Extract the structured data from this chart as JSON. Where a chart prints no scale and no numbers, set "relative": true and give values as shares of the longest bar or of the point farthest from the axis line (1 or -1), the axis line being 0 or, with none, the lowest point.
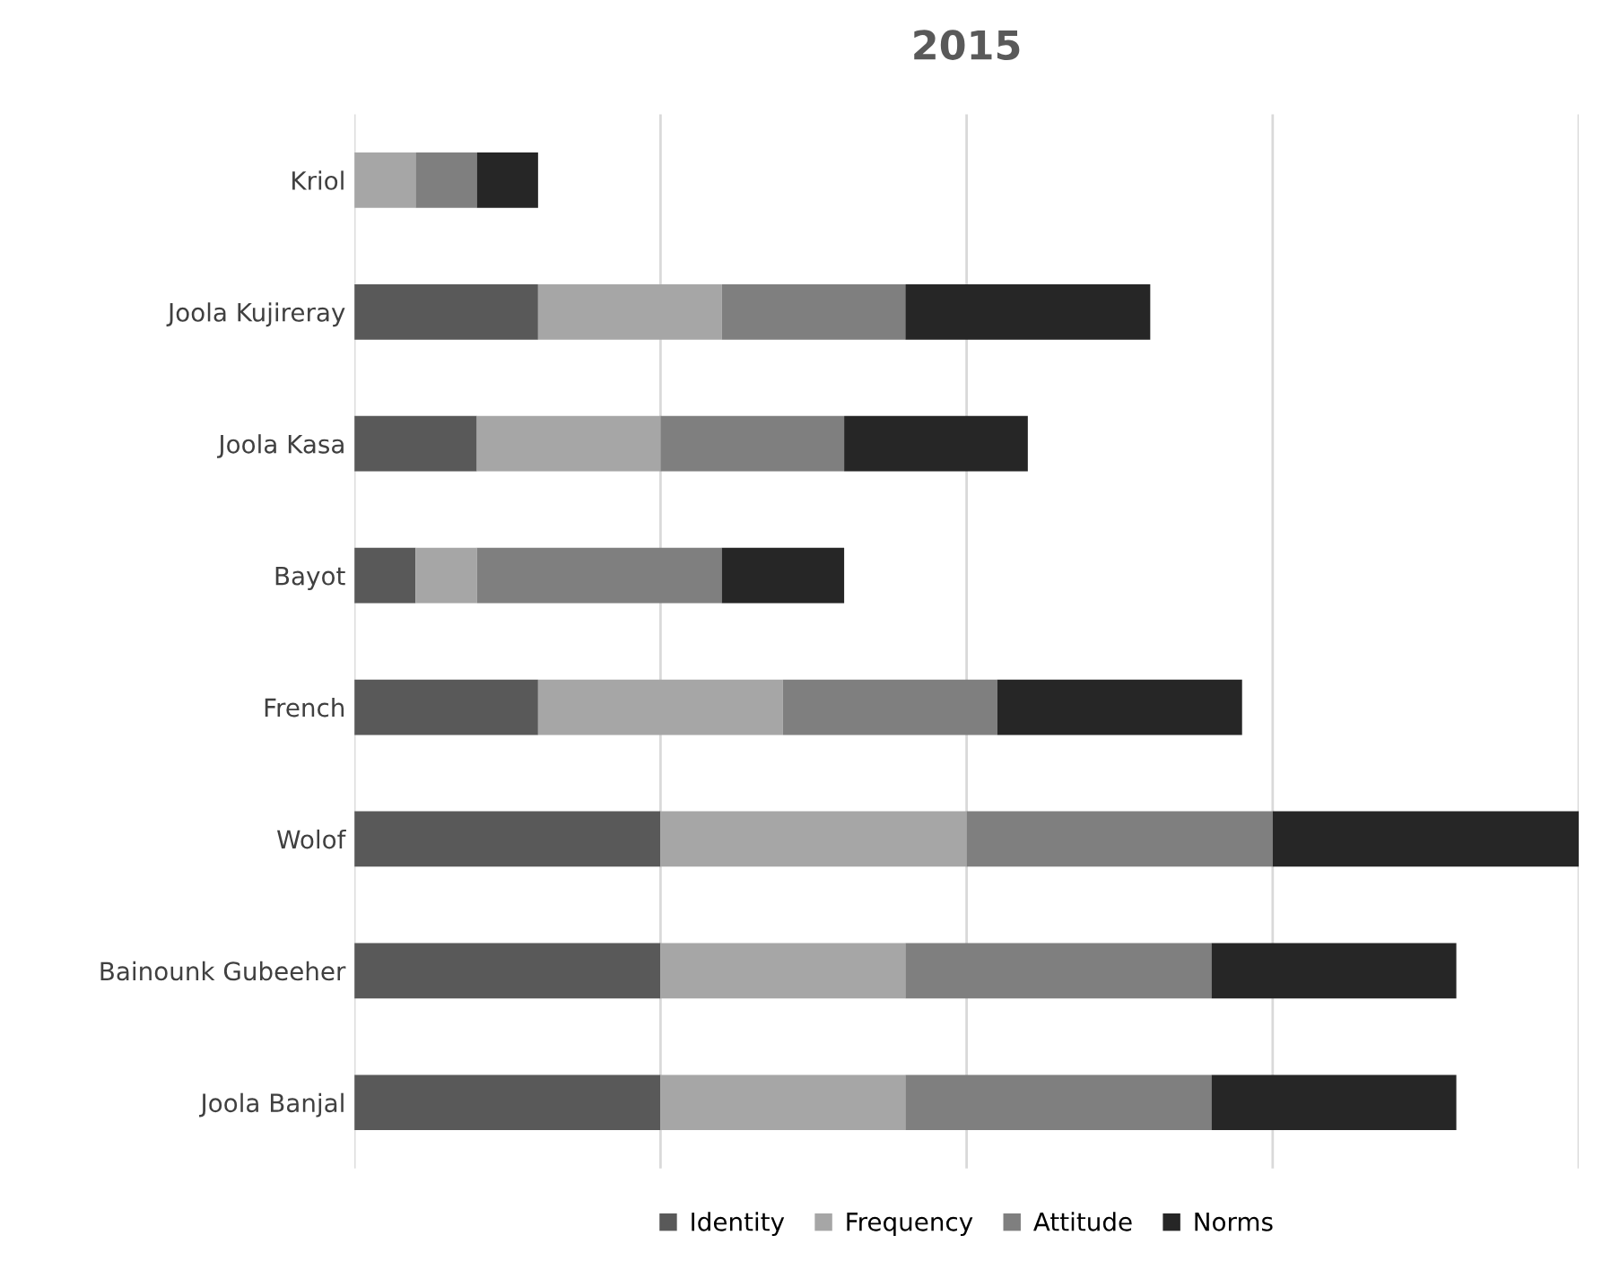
{
  "chart_data": {
    "type": "bar",
    "title": "2015",
    "orientation": "horizontal",
    "stacked": true,
    "relative": true,
    "grid": "x",
    "legend": "bottom",
    "categories": [
      "Kriol",
      "Joola Kujireray",
      "Joola Kasa",
      "Bayot",
      "French",
      "Wolof",
      "Bainounk Gubeeher",
      "Joola Banjal"
    ],
    "series": [
      {
        "name": "Identity",
        "color": "#595959",
        "values": [
          0,
          0.15,
          0.1,
          0.05,
          0.15,
          0.25,
          0.25,
          0.25
        ]
      },
      {
        "name": "Frequency",
        "color": "#a6a6a6",
        "values": [
          0.05,
          0.15,
          0.15,
          0.05,
          0.2,
          0.25,
          0.2,
          0.2
        ]
      },
      {
        "name": "Attitude",
        "color": "#7f7f7f",
        "values": [
          0.05,
          0.15,
          0.15,
          0.2,
          0.175,
          0.25,
          0.25,
          0.25
        ]
      },
      {
        "name": "Norms",
        "color": "#262626",
        "values": [
          0.05,
          0.2,
          0.15,
          0.1,
          0.2,
          0.25,
          0.2,
          0.2
        ]
      }
    ]
  }
}
